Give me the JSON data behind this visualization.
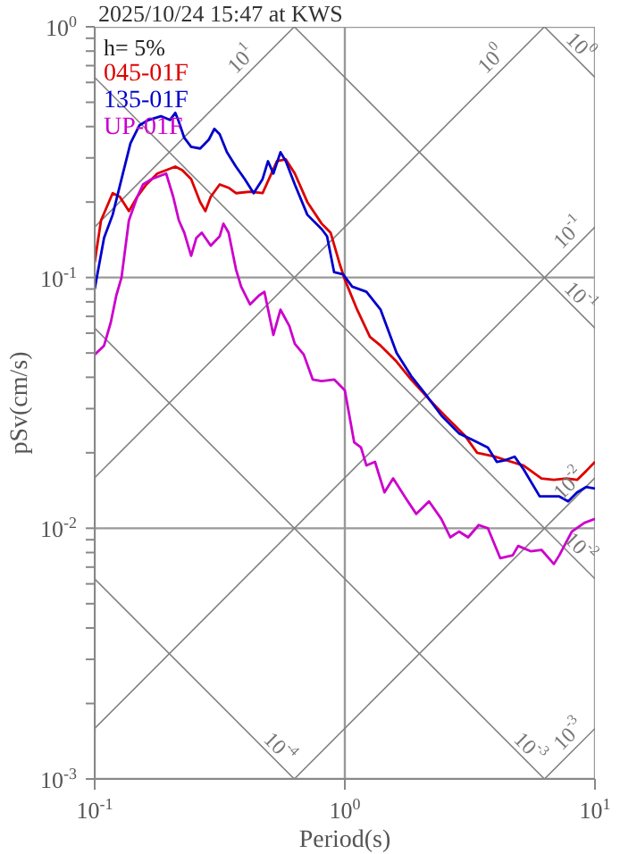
{
  "chart_data": {
    "type": "line",
    "title": "2025/10/24 15:47 at KWS",
    "xlabel": "Period(s)",
    "ylabel": "pSv(cm/s)",
    "log": "xy",
    "grid": true,
    "legend": "top left",
    "xlim": [
      0.1,
      10
    ],
    "ylim": [
      0.001,
      1
    ],
    "xticks": [
      {
        "value": 0.1,
        "label": "10$^{-1}$"
      },
      {
        "value": 1,
        "label": "10$^{0}$"
      },
      {
        "value": 10,
        "label": "10$^{1}$"
      }
    ],
    "yticks": [
      {
        "value": 0.001,
        "label": "10$^{-3}$"
      },
      {
        "value": 0.002,
        "label": null
      },
      {
        "value": 0.003,
        "label": null
      },
      {
        "value": 0.004,
        "label": null
      },
      {
        "value": 0.005,
        "label": null
      },
      {
        "value": 0.006,
        "label": null
      },
      {
        "value": 0.007,
        "label": null
      },
      {
        "value": 0.008,
        "label": null
      },
      {
        "value": 0.009,
        "label": null
      },
      {
        "value": 0.01,
        "label": "10$^{-2}$"
      },
      {
        "value": 0.02,
        "label": null
      },
      {
        "value": 0.03,
        "label": null
      },
      {
        "value": 0.04,
        "label": null
      },
      {
        "value": 0.05,
        "label": null
      },
      {
        "value": 0.06,
        "label": null
      },
      {
        "value": 0.07,
        "label": null
      },
      {
        "value": 0.08,
        "label": null
      },
      {
        "value": 0.09,
        "label": null
      },
      {
        "value": 0.1,
        "label": "10$^{-1}$"
      },
      {
        "value": 0.2,
        "label": null
      },
      {
        "value": 0.3,
        "label": null
      },
      {
        "value": 0.4,
        "label": null
      },
      {
        "value": 0.5,
        "label": null
      },
      {
        "value": 0.6,
        "label": null
      },
      {
        "value": 0.7,
        "label": null
      },
      {
        "value": 0.8,
        "label": null
      },
      {
        "value": 0.9,
        "label": null
      },
      {
        "value": 1,
        "label": "10$^{0}$"
      }
    ],
    "annotations": [
      "h= 5%"
    ],
    "series": [
      {
        "name": "10$^{0}$",
        "color": "#808080",
        "x": [
          6.28,
          10
        ],
        "values": [
          1,
          0.628
        ]
      },
      {
        "name": "10$^{-1}$",
        "color": "#808080",
        "x": [
          0.628,
          10
        ],
        "values": [
          1,
          0.0628
        ]
      },
      {
        "name": "10$^{-2}$",
        "color": "#808080",
        "x": [
          0.1,
          10
        ],
        "values": [
          0.628,
          0.00628
        ]
      },
      {
        "name": "10$^{-3}$",
        "color": "#808080",
        "x": [
          0.1,
          6.28
        ],
        "values": [
          0.0628,
          0.001
        ]
      },
      {
        "name": "10$^{-4}$",
        "color": "#808080",
        "x": [
          0.1,
          0.628
        ],
        "values": [
          0.00628,
          0.001
        ]
      },
      {
        "name": "10$^{1}$",
        "color": "#808080",
        "x": [
          0.1,
          0.628
        ],
        "values": [
          0.159,
          1
        ]
      },
      {
        "name": "10$^{0}$",
        "color": "#808080",
        "x": [
          0.1,
          6.28
        ],
        "values": [
          0.0159,
          1
        ]
      },
      {
        "name": "10$^{-1}$",
        "color": "#808080",
        "x": [
          0.1,
          10
        ],
        "values": [
          0.00159,
          0.159
        ]
      },
      {
        "name": "10$^{-2}$",
        "color": "#808080",
        "x": [
          0.628,
          10
        ],
        "values": [
          0.001,
          0.0159
        ]
      },
      {
        "name": "10$^{-3}$",
        "color": "#808080",
        "x": [
          6.28,
          10
        ],
        "values": [
          0.001,
          0.00159
        ]
      },
      {
        "name": "045-01F",
        "color": "#dd0000",
        "x": [
          0.1,
          0.106,
          0.118,
          0.126,
          0.137,
          0.148,
          0.161,
          0.178,
          0.193,
          0.21,
          0.224,
          0.243,
          0.264,
          0.277,
          0.291,
          0.316,
          0.343,
          0.367,
          0.418,
          0.469,
          0.509,
          0.535,
          0.581,
          0.631,
          0.708,
          0.808,
          0.877,
          0.952,
          1.0,
          1.12,
          1.26,
          1.39,
          1.61,
          1.84,
          2.17,
          2.55,
          3.01,
          3.38,
          3.98,
          4.39,
          5.18,
          6.11,
          6.85,
          7.69,
          8.48,
          9.21,
          10
        ],
        "values": [
          0.115,
          0.169,
          0.217,
          0.21,
          0.184,
          0.21,
          0.235,
          0.26,
          0.268,
          0.277,
          0.268,
          0.247,
          0.2,
          0.184,
          0.21,
          0.235,
          0.228,
          0.217,
          0.22,
          0.217,
          0.26,
          0.291,
          0.296,
          0.26,
          0.2,
          0.164,
          0.151,
          0.114,
          0.098,
          0.0744,
          0.058,
          0.0535,
          0.0462,
          0.0392,
          0.0327,
          0.0277,
          0.0235,
          0.02,
          0.0193,
          0.0187,
          0.0178,
          0.0158,
          0.0156,
          0.0158,
          0.0156,
          0.0169,
          0.0184
        ]
      },
      {
        "name": "135-01F",
        "color": "#0000cc",
        "x": [
          0.1,
          0.109,
          0.118,
          0.128,
          0.139,
          0.151,
          0.164,
          0.184,
          0.2,
          0.21,
          0.217,
          0.228,
          0.243,
          0.264,
          0.286,
          0.301,
          0.316,
          0.338,
          0.367,
          0.398,
          0.432,
          0.469,
          0.493,
          0.518,
          0.553,
          0.581,
          0.631,
          0.708,
          0.808,
          0.849,
          0.906,
          0.984,
          1.07,
          1.22,
          1.39,
          1.61,
          1.84,
          2.1,
          2.43,
          2.86,
          3.27,
          3.73,
          4.05,
          4.39,
          4.77,
          5.18,
          6.01,
          6.63,
          7.2,
          7.81,
          8.48,
          9.21,
          10
        ],
        "values": [
          0.09,
          0.144,
          0.178,
          0.247,
          0.343,
          0.405,
          0.425,
          0.44,
          0.425,
          0.454,
          0.418,
          0.361,
          0.332,
          0.327,
          0.355,
          0.392,
          0.373,
          0.316,
          0.277,
          0.247,
          0.217,
          0.247,
          0.291,
          0.26,
          0.316,
          0.291,
          0.235,
          0.178,
          0.156,
          0.146,
          0.105,
          0.103,
          0.092,
          0.0877,
          0.0744,
          0.0501,
          0.0405,
          0.0343,
          0.0282,
          0.0239,
          0.0224,
          0.021,
          0.0184,
          0.0187,
          0.0193,
          0.0172,
          0.0134,
          0.0134,
          0.0134,
          0.0128,
          0.0139,
          0.0146,
          0.0144
        ]
      },
      {
        "name": "UP-01F",
        "color": "#cc00cc",
        "x": [
          0.1,
          0.109,
          0.116,
          0.122,
          0.128,
          0.137,
          0.148,
          0.156,
          0.169,
          0.184,
          0.193,
          0.206,
          0.217,
          0.228,
          0.243,
          0.255,
          0.268,
          0.291,
          0.316,
          0.327,
          0.343,
          0.367,
          0.385,
          0.418,
          0.454,
          0.477,
          0.518,
          0.553,
          0.6,
          0.631,
          0.685,
          0.744,
          0.808,
          0.906,
          1.0,
          1.09,
          1.16,
          1.22,
          1.32,
          1.44,
          1.56,
          1.75,
          1.93,
          2.17,
          2.43,
          2.64,
          2.86,
          3.11,
          3.43,
          3.73,
          4.18,
          4.69,
          4.93,
          5.53,
          6.11,
          6.85,
          7.2,
          8.08,
          9.06,
          10
        ],
        "values": [
          0.0493,
          0.0535,
          0.0663,
          0.0848,
          0.1,
          0.169,
          0.21,
          0.235,
          0.247,
          0.255,
          0.26,
          0.21,
          0.169,
          0.151,
          0.122,
          0.144,
          0.151,
          0.134,
          0.146,
          0.164,
          0.151,
          0.108,
          0.092,
          0.0781,
          0.0848,
          0.0877,
          0.059,
          0.0744,
          0.0641,
          0.0544,
          0.0493,
          0.0392,
          0.0386,
          0.0392,
          0.0355,
          0.022,
          0.021,
          0.0178,
          0.0184,
          0.0139,
          0.0158,
          0.0132,
          0.0114,
          0.0128,
          0.0109,
          0.0092,
          0.0097,
          0.0092,
          0.0103,
          0.01,
          0.0076,
          0.0078,
          0.0085,
          0.0081,
          0.0082,
          0.0072,
          0.0078,
          0.0097,
          0.0105,
          0.0109
        ]
      }
    ]
  }
}
